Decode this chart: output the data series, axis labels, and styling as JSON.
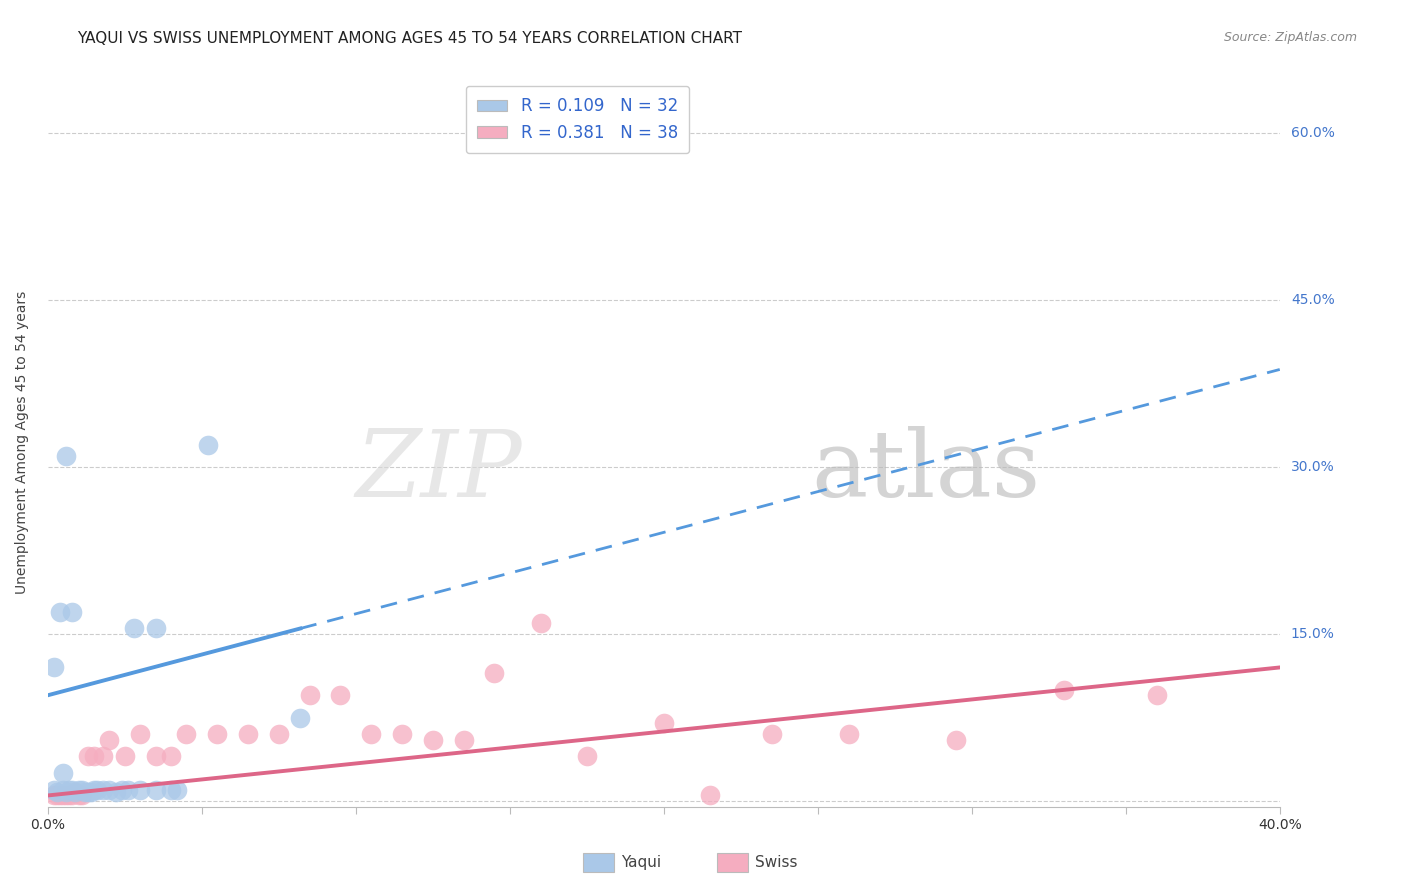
{
  "title": "YAQUI VS SWISS UNEMPLOYMENT AMONG AGES 45 TO 54 YEARS CORRELATION CHART",
  "source": "Source: ZipAtlas.com",
  "ylabel": "Unemployment Among Ages 45 to 54 years",
  "xlim": [
    0.0,
    0.4
  ],
  "ylim": [
    -0.005,
    0.65
  ],
  "ytick_positions": [
    0.0,
    0.15,
    0.3,
    0.45,
    0.6
  ],
  "ytick_labels": [
    "",
    "15.0%",
    "30.0%",
    "45.0%",
    "60.0%"
  ],
  "yaqui_R": 0.109,
  "yaqui_N": 32,
  "swiss_R": 0.381,
  "swiss_N": 38,
  "yaqui_color": "#aac8e8",
  "swiss_color": "#f5adc0",
  "yaqui_line_color": "#5599dd",
  "swiss_line_color": "#dd6688",
  "legend_color": "#3366cc",
  "background_color": "#ffffff",
  "yaqui_x": [
    0.002,
    0.003,
    0.005,
    0.005,
    0.006,
    0.007,
    0.008,
    0.009,
    0.01,
    0.011,
    0.012,
    0.013,
    0.014,
    0.015,
    0.016,
    0.018,
    0.02,
    0.022,
    0.024,
    0.026,
    0.03,
    0.035,
    0.04,
    0.042,
    0.002,
    0.004,
    0.006,
    0.008,
    0.028,
    0.035,
    0.052,
    0.082
  ],
  "yaqui_y": [
    0.01,
    0.008,
    0.01,
    0.025,
    0.008,
    0.01,
    0.01,
    0.008,
    0.01,
    0.01,
    0.008,
    0.008,
    0.008,
    0.01,
    0.01,
    0.01,
    0.01,
    0.008,
    0.01,
    0.01,
    0.01,
    0.01,
    0.01,
    0.01,
    0.12,
    0.17,
    0.31,
    0.17,
    0.155,
    0.155,
    0.32,
    0.075
  ],
  "swiss_x": [
    0.002,
    0.003,
    0.004,
    0.005,
    0.006,
    0.007,
    0.008,
    0.009,
    0.01,
    0.011,
    0.013,
    0.015,
    0.018,
    0.02,
    0.025,
    0.03,
    0.035,
    0.04,
    0.045,
    0.055,
    0.065,
    0.075,
    0.085,
    0.095,
    0.105,
    0.115,
    0.125,
    0.135,
    0.145,
    0.16,
    0.175,
    0.2,
    0.215,
    0.235,
    0.26,
    0.295,
    0.33,
    0.36
  ],
  "swiss_y": [
    0.005,
    0.005,
    0.005,
    0.005,
    0.005,
    0.005,
    0.005,
    0.008,
    0.005,
    0.005,
    0.04,
    0.04,
    0.04,
    0.055,
    0.04,
    0.06,
    0.04,
    0.04,
    0.06,
    0.06,
    0.06,
    0.06,
    0.095,
    0.095,
    0.06,
    0.06,
    0.055,
    0.055,
    0.115,
    0.16,
    0.04,
    0.07,
    0.005,
    0.06,
    0.06,
    0.055,
    0.1,
    0.095
  ],
  "yaqui_line_x0": 0.0,
  "yaqui_line_x1": 0.082,
  "yaqui_line_x_dash_end": 0.4,
  "yaqui_line_y0": 0.095,
  "yaqui_line_y1": 0.155,
  "swiss_line_y0": 0.005,
  "swiss_line_y1": 0.12,
  "watermark_zip": "ZIP",
  "watermark_atlas": "atlas",
  "title_fontsize": 11,
  "axis_label_fontsize": 10,
  "tick_fontsize": 10,
  "legend_fontsize": 12
}
